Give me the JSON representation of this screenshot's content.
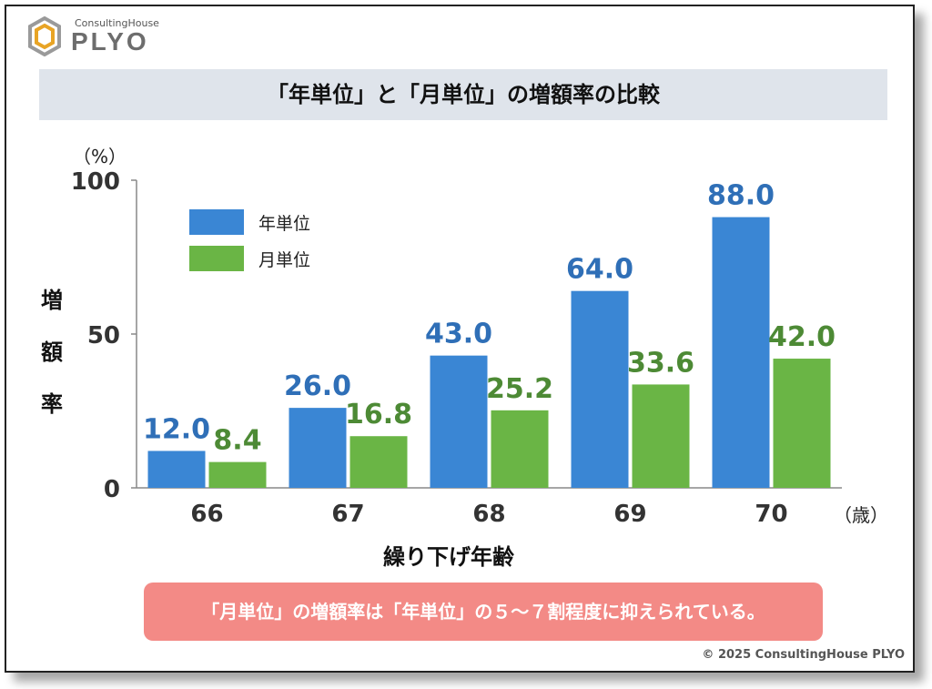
{
  "brand": {
    "sub": "ConsultingHouse",
    "main": "PLYO",
    "logo_icon": "hexagon-logo-icon"
  },
  "title": "「年単位」と「月単位」の増額率の比較",
  "note": "「月単位」の増額率は「年単位」の５～７割程度に抑えられている。",
  "copyright": "© 2025 ConsultingHouse PLYO",
  "colors": {
    "yearly": "#3a86d4",
    "monthly": "#6ab545",
    "yearly_label": "#2f6fb7",
    "monthly_label": "#4d8a35",
    "note_bg": "#f38a86",
    "title_bg": "#dfe4eb"
  },
  "chart_data": {
    "type": "bar",
    "categories": [
      "66",
      "67",
      "68",
      "69",
      "70"
    ],
    "series": [
      {
        "name": "年単位",
        "values": [
          12.0,
          26.0,
          43.0,
          64.0,
          88.0
        ]
      },
      {
        "name": "月単位",
        "values": [
          8.4,
          16.8,
          25.2,
          33.6,
          42.0
        ]
      }
    ],
    "value_labels": {
      "年単位": [
        "12.0",
        "26.0",
        "43.0",
        "64.0",
        "88.0"
      ],
      "月単位": [
        "8.4",
        "16.8",
        "25.2",
        "33.6",
        "42.0"
      ]
    },
    "ylim": [
      0,
      100
    ],
    "yticks": [
      0,
      50,
      100
    ],
    "ylabel": "増額率",
    "ylabel_chars": [
      "増",
      "額",
      "率"
    ],
    "xlabel": "繰り下げ年齢",
    "y_unit": "（%）",
    "x_unit": "（歳）",
    "legend_position": "top-left",
    "grid": false
  }
}
